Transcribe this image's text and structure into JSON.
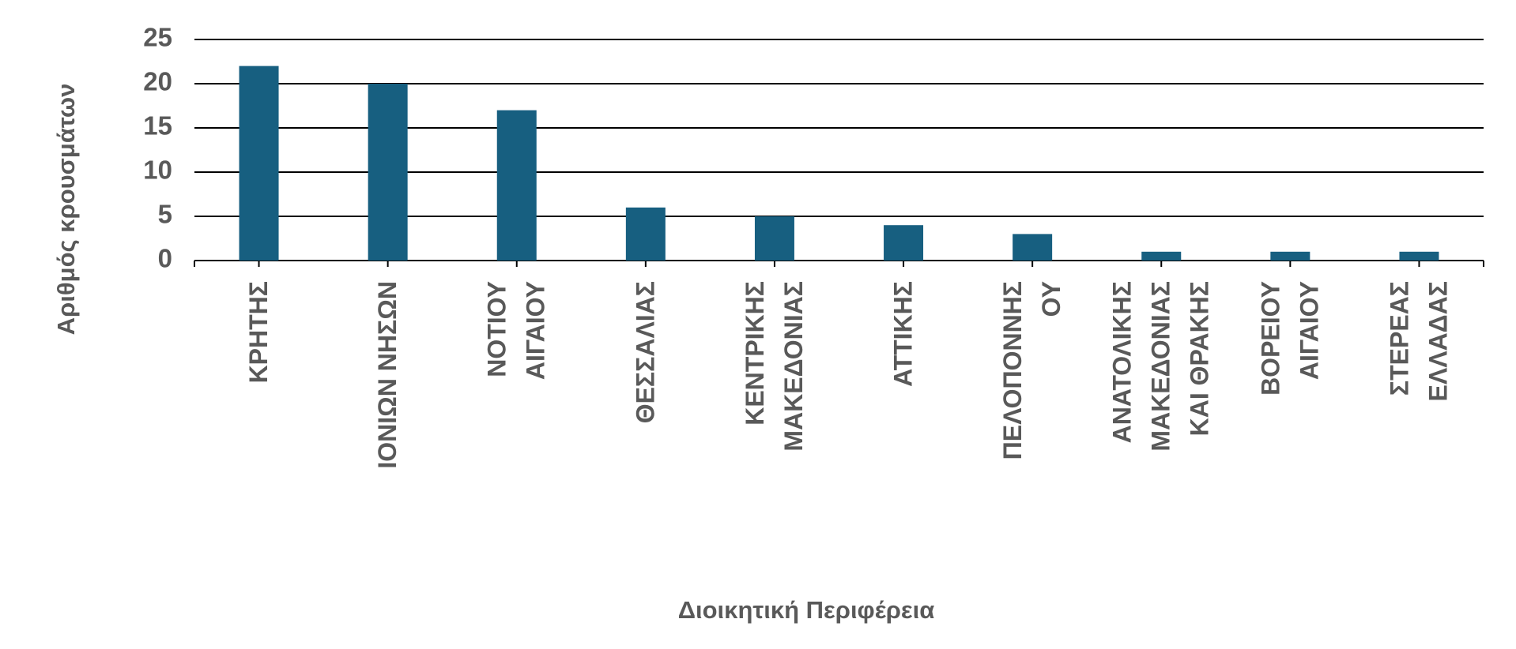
{
  "chart_data": {
    "type": "bar",
    "x_label": "Διοικητική Περιφέρεια",
    "y_label": "Αριθμός κρουσμάτων",
    "categories": [
      [
        "ΚΡΗΤΗΣ"
      ],
      [
        "ΙΟΝΙΩΝ ΝΗΣΩΝ"
      ],
      [
        "ΝΟΤΙΟΥ",
        "ΑΙΓΑΙΟΥ"
      ],
      [
        "ΘΕΣΣΑΛΙΑΣ"
      ],
      [
        "ΚΕΝΤΡΙΚΗΣ",
        "ΜΑΚΕΔΟΝΙΑΣ"
      ],
      [
        "ΑΤΤΙΚΗΣ"
      ],
      [
        "ΠΕΛΟΠΟΝΝΗΣ",
        "ΟΥ"
      ],
      [
        "ΑΝΑΤΟΛΙΚΗΣ",
        "ΜΑΚΕΔΟΝΙΑΣ",
        "ΚΑΙ ΘΡΑΚΗΣ"
      ],
      [
        "ΒΟΡΕΙΟΥ",
        "ΑΙΓΑΙΟΥ"
      ],
      [
        "ΣΤΕΡΕΑΣ",
        "ΕΛΛΑΔΑΣ"
      ]
    ],
    "values": [
      22,
      20,
      17,
      6,
      5,
      4,
      3,
      1,
      1,
      1
    ],
    "color": "#175f80",
    "ylim": [
      0,
      25
    ],
    "yticks": [
      0,
      5,
      10,
      15,
      20,
      25
    ],
    "grid": true
  }
}
